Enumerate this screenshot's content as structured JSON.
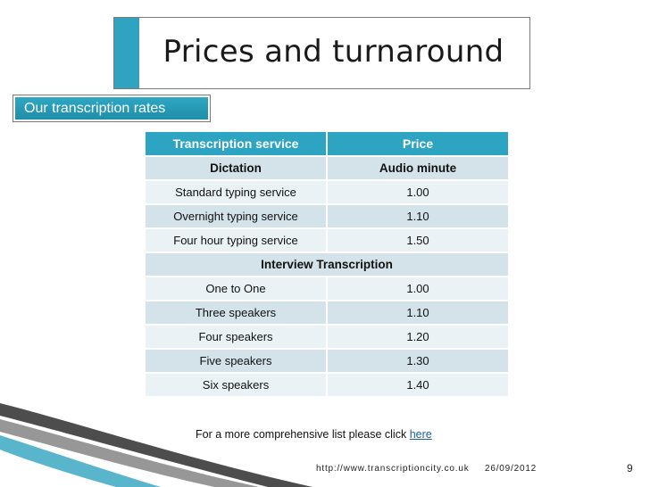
{
  "slide": {
    "title": "Prices and turnaround",
    "subheading": "Our transcription rates",
    "colors": {
      "accent": "#2da4c2",
      "row_fill": "#d3e3e9",
      "link": "#1b5fa8"
    }
  },
  "table": {
    "headers": [
      "Transcription service",
      "Price"
    ],
    "section1": {
      "label": "Dictation",
      "unit": "Audio minute"
    },
    "rows1": [
      {
        "service": "Standard typing service",
        "price": "1.00"
      },
      {
        "service": "Overnight typing service",
        "price": "1.10"
      },
      {
        "service": "Four hour typing service",
        "price": "1.50"
      }
    ],
    "section2": {
      "label": "Interview Transcription"
    },
    "rows2": [
      {
        "service": "One to One",
        "price": "1.00"
      },
      {
        "service": "Three speakers",
        "price": "1.10"
      },
      {
        "service": "Four speakers",
        "price": "1.20"
      },
      {
        "service": "Five speakers",
        "price": "1.30"
      },
      {
        "service": "Six speakers",
        "price": "1.40"
      }
    ]
  },
  "footer": {
    "note": "For a more comprehensive list  please click ",
    "link_text": "here",
    "url": "http://www.transcriptioncity.co.uk",
    "date": "26/09/2012",
    "page_number": "9"
  }
}
